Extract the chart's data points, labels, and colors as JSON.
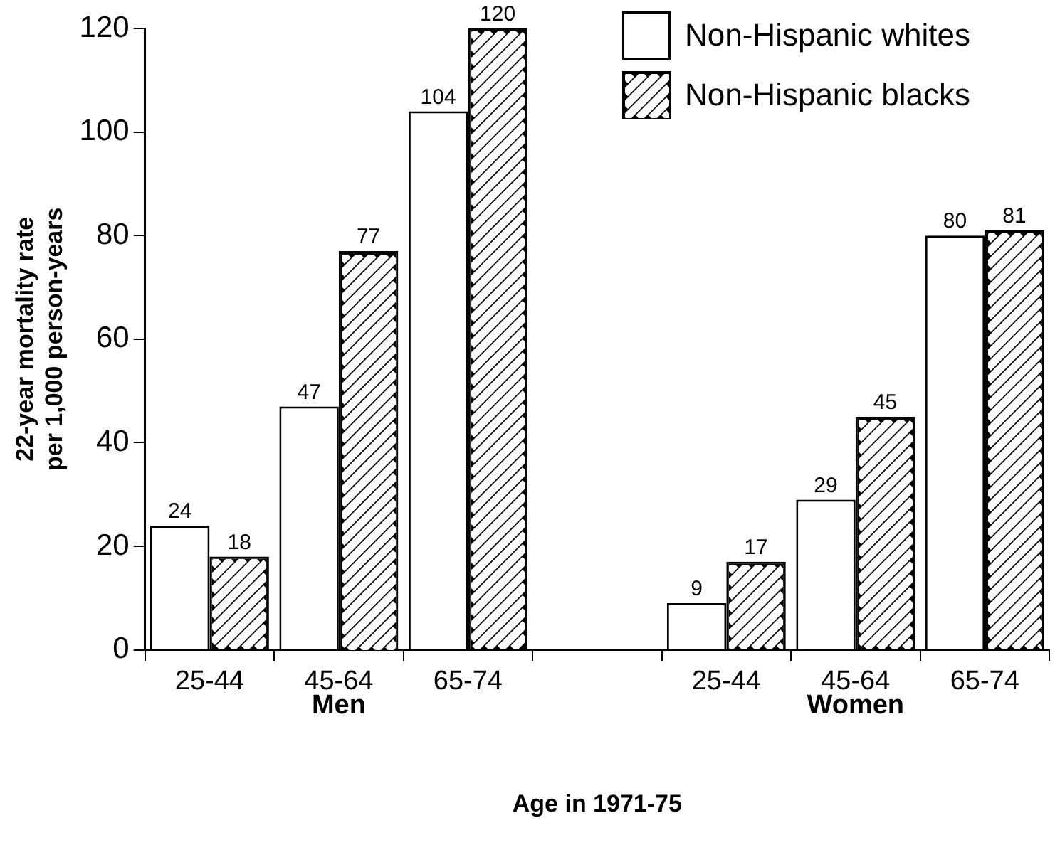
{
  "chart_data": {
    "type": "bar",
    "xlabel": "Age in 1971-75",
    "ylabel": "22-year mortality rate per 1,000 person-years",
    "categories": [
      "25-44",
      "45-64",
      "65-74",
      null,
      "25-44",
      "45-64",
      "65-74"
    ],
    "series": [
      {
        "name": "Non-Hispanic whites",
        "color": "#ffffff",
        "values": [
          24,
          47,
          104,
          null,
          9,
          29,
          80
        ]
      },
      {
        "name": "Non-Hispanic blacks",
        "color": "#000000",
        "values": [
          18,
          77,
          120,
          null,
          17,
          45,
          81
        ]
      }
    ],
    "annotations": [
      "Men",
      "Women"
    ],
    "ylim": [
      0,
      120
    ],
    "yticks": [
      0,
      20,
      40,
      60,
      80,
      100,
      120
    ],
    "grid": false,
    "legend": "top right",
    "data_labels": true
  }
}
